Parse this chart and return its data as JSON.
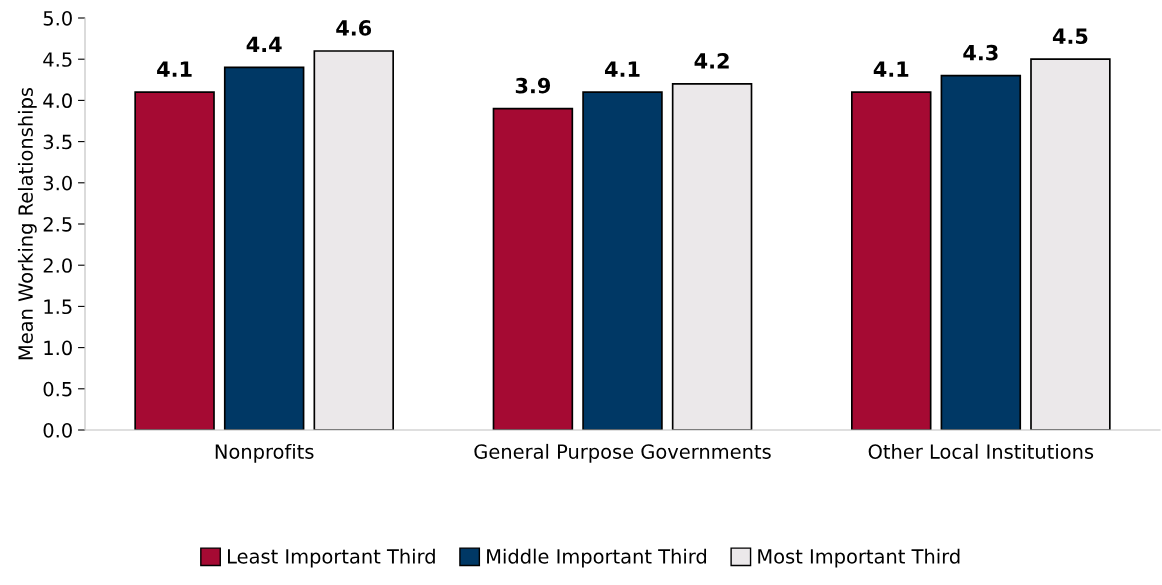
{
  "chart_data": {
    "type": "bar",
    "ylabel": "Mean Working Relationships",
    "categories": [
      "Nonprofits",
      "General Purpose Governments",
      "Other Local Institutions"
    ],
    "series": [
      {
        "name": "Least Important Third",
        "color": "#a50a33",
        "values": [
          4.1,
          3.9,
          4.1
        ]
      },
      {
        "name": "Middle Important Third",
        "color": "#003865",
        "values": [
          4.4,
          4.1,
          4.3
        ]
      },
      {
        "name": "Most Important Third",
        "color": "#ebe8ea",
        "values": [
          4.6,
          4.2,
          4.5
        ]
      }
    ],
    "ylim": [
      0,
      5
    ],
    "yticks": [
      {
        "value": 0,
        "label": "0.0"
      },
      {
        "value": 0.5,
        "label": "0.5"
      },
      {
        "value": 1,
        "label": "1.0"
      },
      {
        "value": 1.5,
        "label": "1.5"
      },
      {
        "value": 2,
        "label": "2.0"
      },
      {
        "value": 2.5,
        "label": "2.5"
      },
      {
        "value": 3,
        "label": "3.0"
      },
      {
        "value": 3.5,
        "label": "3.5"
      },
      {
        "value": 4,
        "label": "4.0"
      },
      {
        "value": 4.5,
        "label": "4.5"
      },
      {
        "value": 5,
        "label": "5.0"
      }
    ],
    "data_labels": true,
    "grid": false,
    "legend": "bottom"
  }
}
